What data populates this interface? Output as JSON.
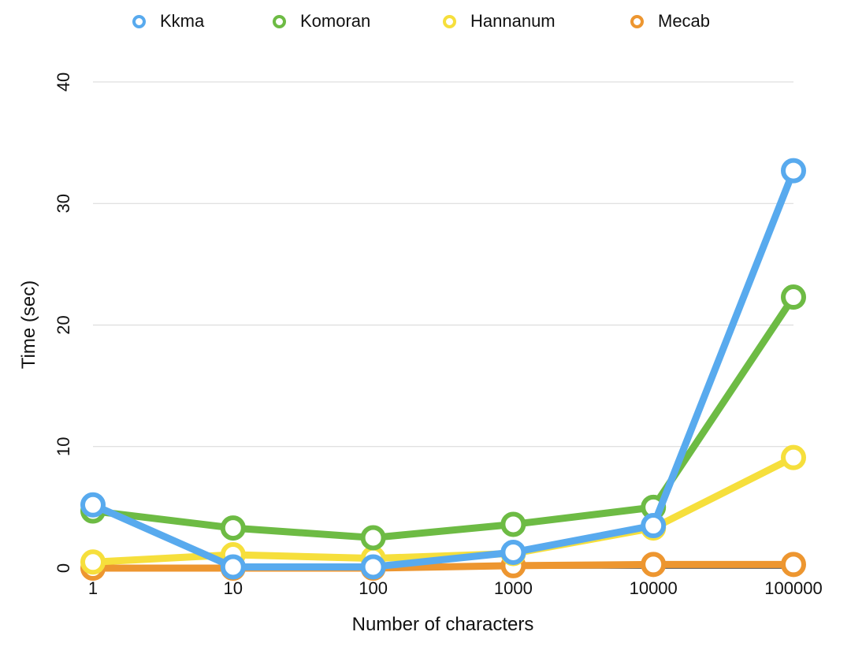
{
  "chart_data": {
    "type": "line",
    "title": "",
    "xlabel": "Number of characters",
    "ylabel": "Time (sec)",
    "categories": [
      "1",
      "10",
      "100",
      "1000",
      "10000",
      "100000"
    ],
    "ylim": [
      0,
      40
    ],
    "yticks": [
      0,
      10,
      20,
      30,
      40
    ],
    "grid": true,
    "legend_position": "top",
    "series": [
      {
        "name": "Kkma",
        "color": "#58aaee",
        "values": [
          5.2,
          0.1,
          0.1,
          1.3,
          3.5,
          32.7
        ]
      },
      {
        "name": "Komoran",
        "color": "#6dbb44",
        "values": [
          4.7,
          3.3,
          2.5,
          3.6,
          5.0,
          22.3
        ]
      },
      {
        "name": "Hannanum",
        "color": "#f6df3c",
        "values": [
          0.5,
          1.1,
          0.8,
          1.2,
          3.3,
          9.1
        ]
      },
      {
        "name": "Mecab",
        "color": "#ed9630",
        "values": [
          0.0,
          0.0,
          0.0,
          0.2,
          0.3,
          0.3
        ]
      }
    ]
  }
}
